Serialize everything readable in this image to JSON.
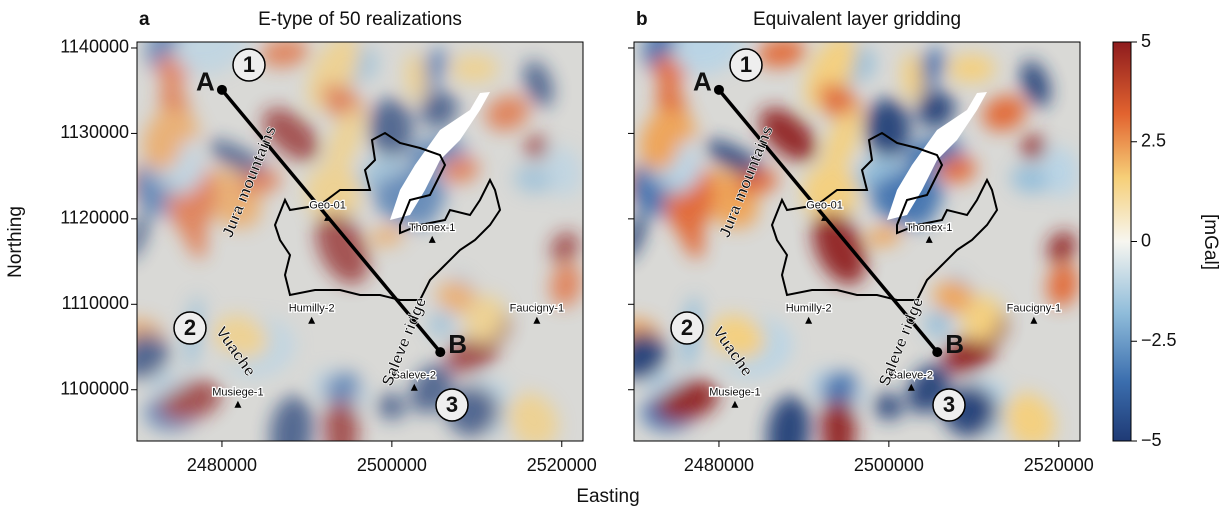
{
  "panels": [
    {
      "letter": "a",
      "title": "E-type of 50 realizations"
    },
    {
      "letter": "b",
      "title": "Equivalent layer gridding"
    }
  ],
  "axes": {
    "xlabel": "Easting",
    "ylabel": "Northing",
    "xlim": [
      2470000,
      2522500
    ],
    "ylim": [
      1094000,
      1140700
    ],
    "xticks": [
      2480000,
      2500000,
      2520000
    ],
    "yticks": [
      1100000,
      1110000,
      1120000,
      1130000,
      1140000
    ]
  },
  "profile": {
    "start": {
      "label": "A",
      "x": 2480000,
      "y": 1135100
    },
    "end": {
      "label": "B",
      "x": 2505700,
      "y": 1104400
    }
  },
  "wells": [
    {
      "name": "Geo-01",
      "x": 2492430,
      "y": 1120120
    },
    {
      "name": "Thonex-1",
      "x": 2504750,
      "y": 1117540
    },
    {
      "name": "Humilly-2",
      "x": 2490560,
      "y": 1108070
    },
    {
      "name": "Faucigny-1",
      "x": 2517070,
      "y": 1108070
    },
    {
      "name": "Musiege-1",
      "x": 2481880,
      "y": 1098250
    },
    {
      "name": "Saleve-2",
      "x": 2502640,
      "y": 1100230
    }
  ],
  "markers": [
    "1",
    "2",
    "3"
  ],
  "features": [
    "Jura mountains",
    "Vuache",
    "Saleve ridge"
  ],
  "colorbar": {
    "label": "[mGal]",
    "lim": [
      -5,
      5
    ],
    "ticks": [
      5,
      2.5,
      0,
      {
        "value": -2.5,
        "label": "−2.5"
      },
      {
        "value": -5,
        "label": "−5"
      }
    ]
  }
}
